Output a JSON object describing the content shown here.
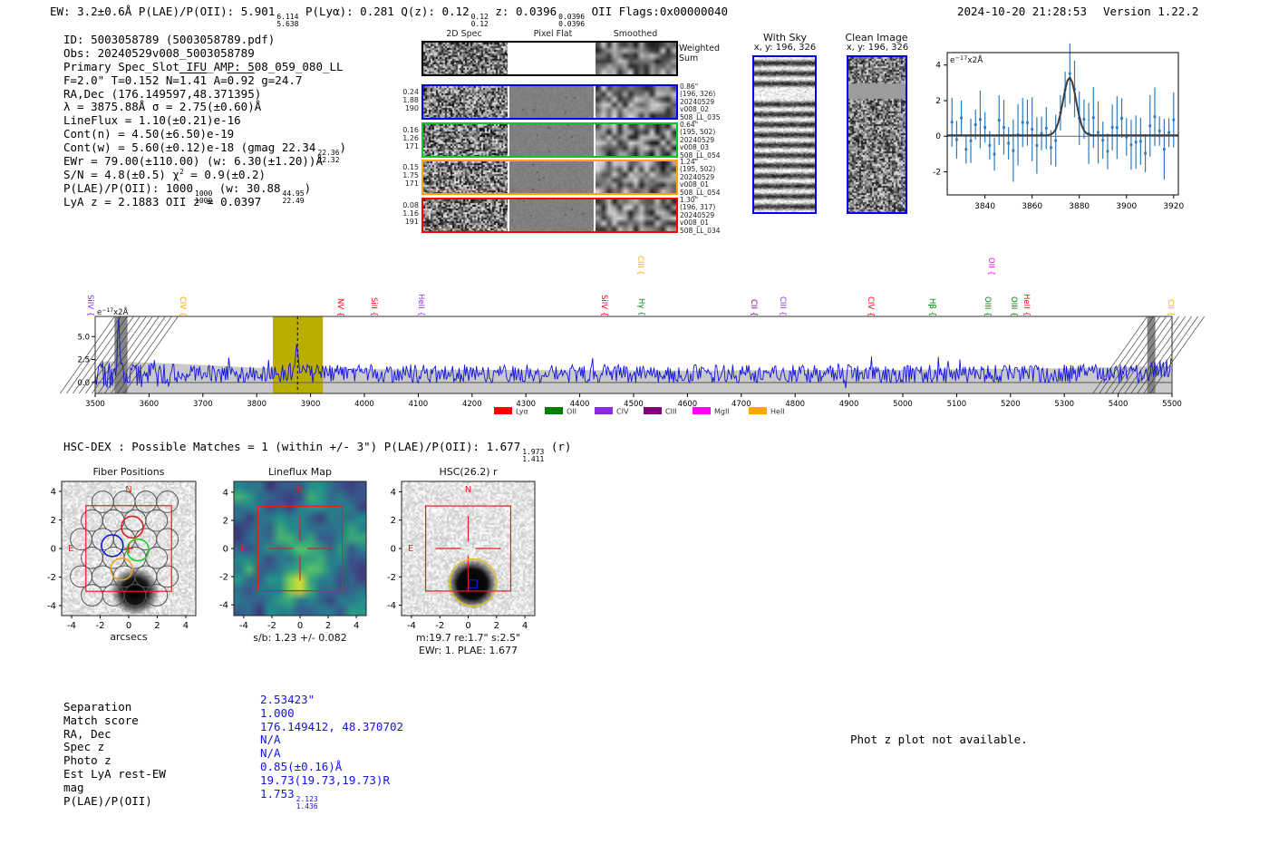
{
  "header": {
    "left_segments": [
      {
        "t": "EW: 3.2±0.6Å  P(LAE)/P(OII): 5.901"
      },
      {
        "f": [
          "6.114",
          "5.638"
        ]
      },
      {
        "t": "  P(Lyα): 0.281  Q(z): 0.12"
      },
      {
        "f": [
          "0.12",
          "0.12"
        ]
      },
      {
        "t": "  z: 0.0396"
      },
      {
        "f": [
          "0.0396",
          "0.0396"
        ]
      },
      {
        "t": " OII  Flags:0x00000040"
      }
    ],
    "timestamp": "2024-10-20 21:28:53",
    "version": "Version 1.22.2"
  },
  "info_block": {
    "lines": [
      [
        {
          "t": "ID: 5003058789 (5003058789.pdf)"
        }
      ],
      [
        {
          "t": "Obs: 20240529v008_5003058789"
        }
      ],
      [
        {
          "t": "Primary Spec_Slot_IFU_AMP: 508_059_080_LL"
        }
      ],
      [
        {
          "t": "F=2.0\"  T=0.152  N="
        },
        {
          "t": "1.41",
          "ov": true
        },
        {
          "t": "  A="
        },
        {
          "t": "0.92",
          "ov": true
        },
        {
          "t": "  g=24.7"
        }
      ],
      [
        {
          "t": "RA,Dec (176.149597,48.371395)"
        }
      ],
      [
        {
          "t": "λ = 3875.88Å  σ = 2.75(±0.60)Å"
        }
      ],
      [
        {
          "t": "LineFlux = 1.10(±0.21)e-16"
        }
      ],
      [
        {
          "t": "Cont(n) = 4.50(±6.50)e-19"
        }
      ],
      [
        {
          "t": "Cont(w) = 5.60(±0.12)e-18 (gmag 22.34"
        },
        {
          "f": [
            "22.36",
            "22.32"
          ]
        },
        {
          "t": ")"
        }
      ],
      [
        {
          "t": "EWr = 79.00(±110.00) (w: 6.30(±1.20))Å"
        }
      ],
      [
        {
          "t": "S/N = 4.8(±0.5)  χ"
        },
        {
          "t": "2",
          "sup": true
        },
        {
          "t": " = 0.9(±0.2)"
        }
      ],
      [
        {
          "t": "P(LAE)/P(OII): 1000"
        },
        {
          "f": [
            "1000",
            "1000"
          ]
        },
        {
          "t": " (w: 30.88"
        },
        {
          "f": [
            "44.95",
            "22.49"
          ]
        },
        {
          "t": ")"
        }
      ],
      [
        {
          "t": "LyA z = 2.1883  OII z = 0.0397"
        }
      ]
    ]
  },
  "spec2d": {
    "col_headers": [
      "2D Spec",
      "Pixel Flat",
      "Smoothed"
    ],
    "weighted_label": [
      "Weighted",
      "Sum"
    ],
    "rows": [
      {
        "border_color": "#0000ee",
        "left": [
          "0.24",
          "1.88",
          "190"
        ],
        "right": [
          "0.86\"",
          "(196, 326)",
          "20240529",
          "v008_02",
          "508_LL_035"
        ]
      },
      {
        "border_color": "#00cc22",
        "left": [
          "0.16",
          "1.26",
          "171"
        ],
        "right": [
          "0.64\"",
          "(195, 502)",
          "20240529",
          "v008_03",
          "508_LL_054"
        ]
      },
      {
        "border_color": "#ffa500",
        "left": [
          "0.15",
          "1.75",
          "171"
        ],
        "right": [
          "1.24\"",
          "(195, 502)",
          "20240529",
          "v008_01",
          "508_LL_054"
        ]
      },
      {
        "border_color": "#ff0000",
        "left": [
          "0.08",
          "1.16",
          "191"
        ],
        "right": [
          "1.30\"",
          "(196, 317)",
          "20240529",
          "v008_01",
          "508_LL_034"
        ]
      }
    ]
  },
  "sky_panels": {
    "with_sky": {
      "title": "With Sky",
      "coords": "x, y: 196, 326"
    },
    "clean": {
      "title": "Clean Image",
      "coords": "x, y: 196, 326"
    }
  },
  "chart_data": [
    {
      "id": "line_fit_inset",
      "type": "line",
      "annotation": {
        "base": "e",
        "sup": "−17",
        "rest": "x2Å"
      },
      "xlim": [
        3824,
        3922
      ],
      "ylim": [
        -3.3,
        4.7
      ],
      "xticks": [
        3840,
        3860,
        3880,
        3900,
        3920
      ],
      "yticks": [
        -2,
        0,
        2,
        4
      ],
      "series": [
        {
          "name": "observed_errorbars",
          "style": "errorbar",
          "color": "#2d7bbf",
          "x_step": 2,
          "typical_error": 1.3
        },
        {
          "name": "gaussian_fit",
          "style": "line",
          "color": "#3c3c3c",
          "center": 3875.88,
          "sigma": 2.75,
          "amplitude": 3.25,
          "baseline": 0.05
        }
      ],
      "grid": false
    },
    {
      "id": "full_spectrum",
      "type": "line",
      "annotation": {
        "base": "e",
        "sup": "−17",
        "rest": "x2Å"
      },
      "xlim": [
        3500,
        5500
      ],
      "ylim": [
        -1.2,
        7.2
      ],
      "xticks": [
        3500,
        3600,
        3700,
        3800,
        3900,
        4000,
        4100,
        4200,
        4300,
        4400,
        4500,
        4600,
        4700,
        4800,
        4900,
        5000,
        5100,
        5200,
        5300,
        5400,
        5500
      ],
      "ytick_labels": [
        "0.0",
        "2.5",
        "5.0"
      ],
      "yticks": [
        0.0,
        2.5,
        5.0
      ],
      "line_color": "#1212e0",
      "noise_mean": 0.95,
      "emission_peak": {
        "center": 3875.88,
        "sigma": 2.8,
        "amplitude": 2.9
      },
      "sky_spike": {
        "center": 3544,
        "sigma": 1.9,
        "amplitude": 6.4
      },
      "highlight_band": {
        "x0": 3830,
        "x1": 3923,
        "color": "#b9ad00",
        "dashed_line_at": 3875.88
      },
      "masked_bands": [
        [
          3536,
          3560
        ],
        [
          5454,
          5469
        ]
      ],
      "error_envelope_top": [
        [
          3500,
          0.3
        ],
        [
          3512,
          2.35
        ],
        [
          3650,
          2.05
        ],
        [
          3800,
          1.6
        ],
        [
          4100,
          1.4
        ],
        [
          4600,
          1.3
        ],
        [
          5000,
          1.4
        ],
        [
          5300,
          1.55
        ],
        [
          5500,
          1.8
        ]
      ],
      "line_markers": [
        {
          "label": "SiIV",
          "wavelength": 3490,
          "color": "#8a2be2",
          "elevated": false
        },
        {
          "label": "CIV",
          "wavelength": 3661,
          "color": "#ffa500",
          "elevated": false
        },
        {
          "label": "NV",
          "wavelength": 3954,
          "color": "#ff0000",
          "elevated": false
        },
        {
          "label": "SiII",
          "wavelength": 4017,
          "color": "#ff0000",
          "elevated": false
        },
        {
          "label": "HeII",
          "wavelength": 4104,
          "color": "#8a2be2",
          "elevated": false
        },
        {
          "label": "SiIV",
          "wavelength": 4444,
          "color": "#ff0000",
          "elevated": false
        },
        {
          "label": "CIII",
          "wavelength": 4512,
          "color": "#ffa500",
          "elevated": true
        },
        {
          "label": "Hγ",
          "wavelength": 4513,
          "color": "#008000",
          "elevated": false
        },
        {
          "label": "CII",
          "wavelength": 4723,
          "color": "#800080",
          "elevated": false
        },
        {
          "label": "CIII",
          "wavelength": 4776,
          "color": "#8a2be2",
          "elevated": false
        },
        {
          "label": "CIV",
          "wavelength": 4939,
          "color": "#ff0000",
          "elevated": false
        },
        {
          "label": "Hβ",
          "wavelength": 5054,
          "color": "#008000",
          "elevated": false
        },
        {
          "label": "OIII",
          "wavelength": 5156,
          "color": "#008000",
          "elevated": false
        },
        {
          "label": "OII",
          "wavelength": 5163,
          "color": "#ff00ff",
          "elevated": true
        },
        {
          "label": "OIII",
          "wavelength": 5206,
          "color": "#008000",
          "elevated": false
        },
        {
          "label": "HeII",
          "wavelength": 5229,
          "color": "#ff0000",
          "elevated": false
        },
        {
          "label": "CII",
          "wavelength": 5497,
          "color": "#ffa500",
          "elevated": false
        }
      ],
      "legend": [
        {
          "label": "Lyα",
          "color": "#ff0000"
        },
        {
          "label": "OII",
          "color": "#008000"
        },
        {
          "label": "CIV",
          "color": "#8a2be2"
        },
        {
          "label": "CIII",
          "color": "#800080"
        },
        {
          "label": "MgII",
          "color": "#ff00ff"
        },
        {
          "label": "HeII",
          "color": "#ffa500"
        }
      ],
      "legend_position": "below"
    }
  ],
  "hsc_dex": {
    "segments": [
      {
        "t": "HSC-DEX : Possible Matches = 1 (within +/- 3\")  P(LAE)/P(OII): 1.677"
      },
      {
        "f": [
          "1.973",
          "1.411"
        ]
      },
      {
        "t": " (r)"
      }
    ]
  },
  "cutouts": {
    "ticks": [
      -4,
      -2,
      0,
      2,
      4
    ],
    "compass": {
      "north": "N",
      "east": "E"
    },
    "fiber": {
      "title": "Fiber Positions",
      "xlabel": "arcsecs"
    },
    "lineflux": {
      "title": "Lineflux Map",
      "caption": "s/b: 1.23 +/- 0.082"
    },
    "hsc": {
      "title": "HSC(26.2) r",
      "caption1": "m:19.7  re:1.7\"  s:2.5\"",
      "caption2": "EWr: 1. PLAE: 1.677"
    }
  },
  "match_table": {
    "labels": [
      "Separation",
      "Match score",
      "RA, Dec",
      "Spec z",
      "Photo z",
      "Est LyA rest-EW",
      "mag",
      "P(LAE)/P(OII)"
    ],
    "values": [
      [
        {
          "t": "2.53423\""
        }
      ],
      [
        {
          "t": "1.000"
        }
      ],
      [
        {
          "t": "176.149412, 48.370702"
        }
      ],
      [
        {
          "t": "N/A"
        }
      ],
      [
        {
          "t": "N/A"
        }
      ],
      [
        {
          "t": "0.85(±0.16)Å"
        }
      ],
      [
        {
          "t": "19.73(19.73,19.73)R"
        }
      ],
      [
        {
          "t": "1.753"
        },
        {
          "f": [
            "2.123",
            "1.436"
          ]
        }
      ]
    ],
    "value_color": "#1414e6"
  },
  "photz_note": "Phot z plot not available."
}
